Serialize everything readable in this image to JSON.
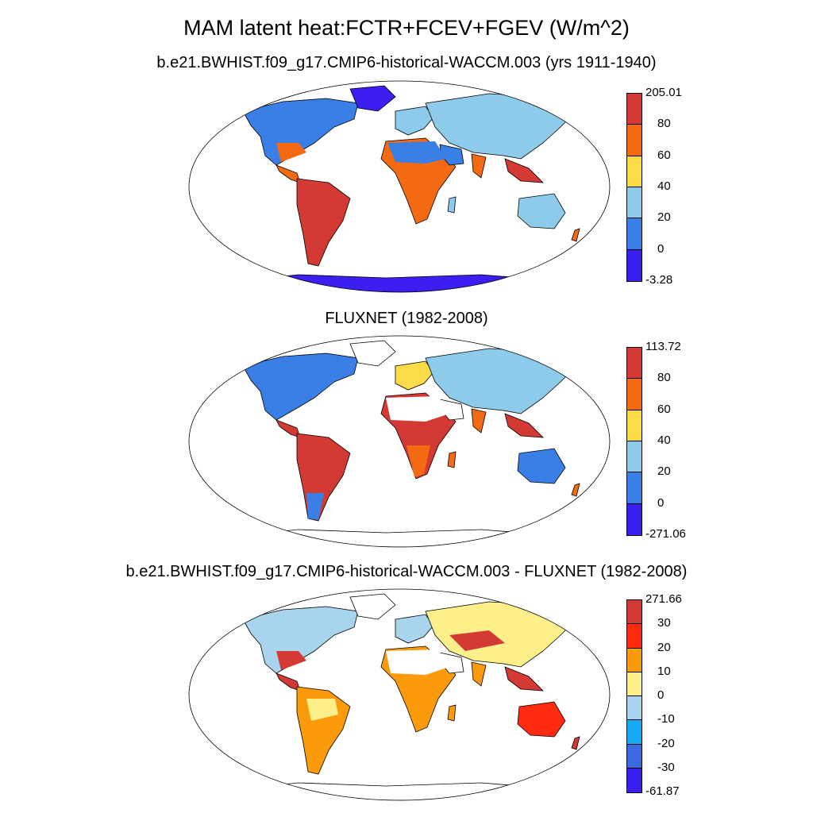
{
  "main_title": "MAM latent heat:FCTR+FCEV+FGEV (W/m^2)",
  "panels": [
    {
      "title": "b.e21.BWHIST.f09_g17.CMIP6-historical-WACCM.003 (yrs 1911-1940)",
      "colorbar": {
        "labels": [
          "205.01",
          "80",
          "60",
          "40",
          "20",
          "0",
          "-3.28"
        ],
        "colors": [
          "#d23a33",
          "#f46a12",
          "#fbdc48",
          "#8ecbeb",
          "#3a7fe6",
          "#3b1ef0"
        ]
      }
    },
    {
      "title": "FLUXNET (1982-2008)",
      "colorbar": {
        "labels": [
          "113.72",
          "80",
          "60",
          "40",
          "20",
          "0",
          "-271.06"
        ],
        "colors": [
          "#d23a33",
          "#f46a12",
          "#fbdc48",
          "#8ecbeb",
          "#3a7fe6",
          "#3b1ef0"
        ]
      }
    },
    {
      "title": "b.e21.BWHIST.f09_g17.CMIP6-historical-WACCM.003 - FLUXNET (1982-2008)",
      "colorbar": {
        "labels": [
          "271.66",
          "30",
          "20",
          "10",
          "0",
          "-10",
          "-20",
          "-30",
          "-61.87"
        ],
        "colors": [
          "#d23a33",
          "#ff2a10",
          "#fb9a0a",
          "#fdf08a",
          "#a8d4ee",
          "#16a9f4",
          "#3b69e0",
          "#3b1ef0"
        ]
      }
    }
  ]
}
